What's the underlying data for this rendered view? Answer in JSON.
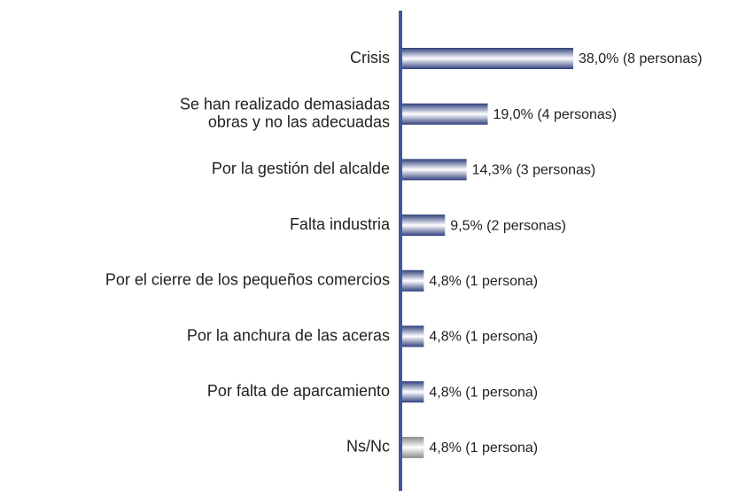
{
  "chart_data": {
    "type": "bar",
    "orientation": "horizontal",
    "categories": [
      "Crisis",
      "Se han realizado demasiadas obras y no las adecuadas",
      "Por la gestión del alcalde",
      "Falta industria",
      "Por el cierre de los pequeños comercios",
      "Por la anchura de las aceras",
      "Por falta de aparcamiento",
      "Ns/Nc"
    ],
    "values": [
      38.0,
      19.0,
      14.3,
      9.5,
      4.8,
      4.8,
      4.8,
      4.8
    ],
    "value_labels": [
      "38,0% (8 personas)",
      "19,0% (4 personas)",
      "14,3% (3 personas)",
      "9,5% (2 personas)",
      "4,8% (1 persona)",
      "4,8% (1 persona)",
      "4,8% (1 persona)",
      "4,8% (1 persona)"
    ],
    "colors": [
      "blue",
      "blue",
      "blue",
      "blue",
      "blue",
      "blue",
      "blue",
      "gray"
    ]
  }
}
